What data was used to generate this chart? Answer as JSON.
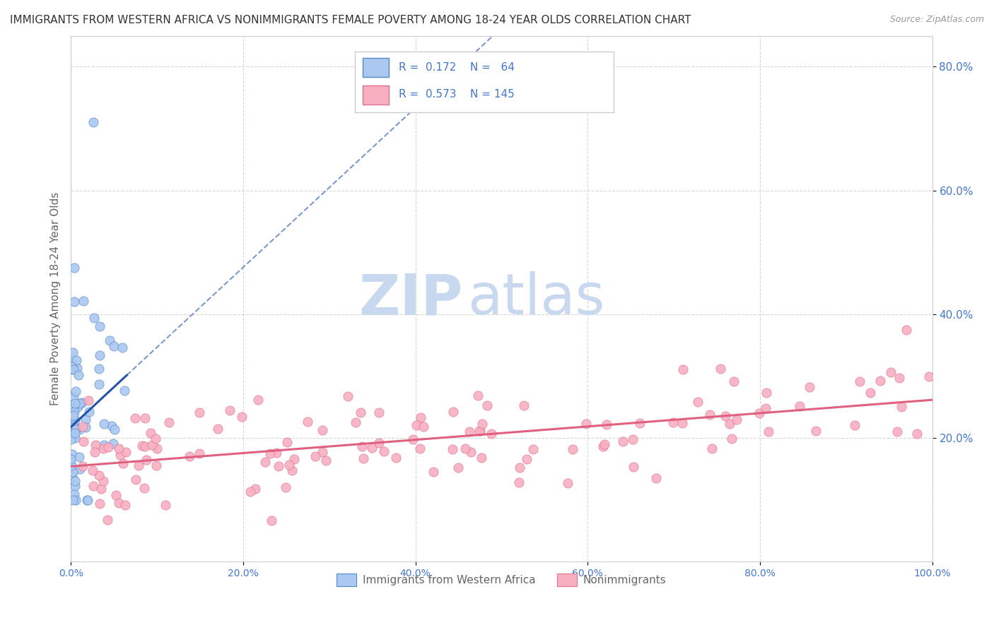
{
  "title": "IMMIGRANTS FROM WESTERN AFRICA VS NONIMMIGRANTS FEMALE POVERTY AMONG 18-24 YEAR OLDS CORRELATION CHART",
  "source": "Source: ZipAtlas.com",
  "ylabel": "Female Poverty Among 18-24 Year Olds",
  "watermark_part1": "ZIP",
  "watermark_part2": "atlas",
  "series1_label": "Immigrants from Western Africa",
  "series1_R": 0.172,
  "series1_N": 64,
  "series1_color": "#aac8f0",
  "series1_edge": "#5588cc",
  "series1_line_color": "#2255aa",
  "series2_label": "Nonimmigrants",
  "series2_R": 0.573,
  "series2_N": 145,
  "series2_color": "#f8b0c0",
  "series2_edge": "#e07090",
  "series2_line_color": "#e06080",
  "xlim": [
    0.0,
    1.0
  ],
  "ylim": [
    0.0,
    0.85
  ],
  "ytick_vals": [
    0.2,
    0.4,
    0.6,
    0.8
  ],
  "ytick_labels": [
    "20.0%",
    "40.0%",
    "60.0%",
    "80.0%"
  ],
  "xtick_vals": [
    0.0,
    0.2,
    0.4,
    0.6,
    0.8,
    1.0
  ],
  "xtick_labels": [
    "0.0%",
    "20.0%",
    "40.0%",
    "60.0%",
    "80.0%",
    "100.0%"
  ],
  "grid_color": "#cccccc",
  "bg_color": "#ffffff",
  "title_color": "#333333",
  "title_fontsize": 11,
  "axis_label_color": "#666666",
  "tick_color": "#4477cc",
  "legend_text_color": "#4477cc",
  "watermark_color": "#c8d8ee"
}
